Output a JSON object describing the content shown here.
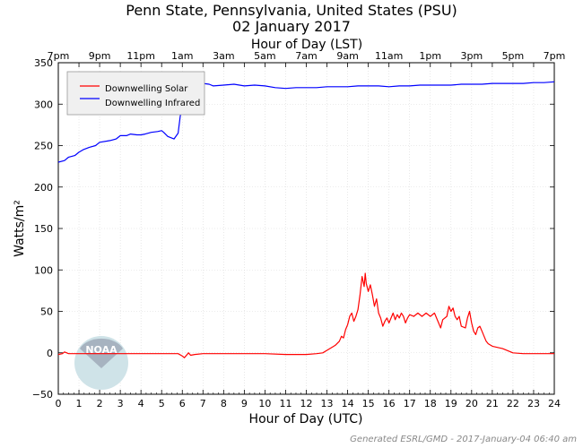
{
  "chart_data": {
    "type": "line",
    "title": "Penn State, Pennsylvania, United States (PSU)",
    "subtitle": "02 January 2017",
    "xlabel": "Hour of Day (UTC)",
    "top_xlabel": "Hour of Day (LST)",
    "ylabel": "Watts/m²",
    "xlim": [
      0,
      24
    ],
    "ylim": [
      -50,
      350
    ],
    "x_ticks": [
      0,
      1,
      2,
      3,
      4,
      5,
      6,
      7,
      8,
      9,
      10,
      11,
      12,
      13,
      14,
      15,
      16,
      17,
      18,
      19,
      20,
      21,
      22,
      23,
      24
    ],
    "y_ticks": [
      -50,
      0,
      50,
      100,
      150,
      200,
      250,
      300,
      350
    ],
    "top_ticks": [
      {
        "x": 0,
        "label": "7pm"
      },
      {
        "x": 2,
        "label": "9pm"
      },
      {
        "x": 4,
        "label": "11pm"
      },
      {
        "x": 6,
        "label": "1am"
      },
      {
        "x": 8,
        "label": "3am"
      },
      {
        "x": 10,
        "label": "5am"
      },
      {
        "x": 12,
        "label": "7am"
      },
      {
        "x": 14,
        "label": "9am"
      },
      {
        "x": 16,
        "label": "11am"
      },
      {
        "x": 18,
        "label": "1pm"
      },
      {
        "x": 20,
        "label": "3pm"
      },
      {
        "x": 22,
        "label": "5pm"
      },
      {
        "x": 24,
        "label": "7pm"
      }
    ],
    "grid": true,
    "legend_position": "top-left",
    "series": [
      {
        "name": "Downwelling Solar",
        "color": "#ff0000",
        "points": [
          [
            0,
            -2
          ],
          [
            0.2,
            -1
          ],
          [
            0.3,
            1
          ],
          [
            0.5,
            -1
          ],
          [
            1,
            -1
          ],
          [
            1.5,
            -1
          ],
          [
            2,
            -1
          ],
          [
            2.5,
            -1
          ],
          [
            3,
            -1
          ],
          [
            3.5,
            -1
          ],
          [
            4,
            -1
          ],
          [
            4.5,
            -1
          ],
          [
            5,
            -1
          ],
          [
            5.5,
            -1
          ],
          [
            5.8,
            -1
          ],
          [
            6,
            -4
          ],
          [
            6.1,
            -6
          ],
          [
            6.2,
            -3
          ],
          [
            6.3,
            0
          ],
          [
            6.4,
            -3
          ],
          [
            6.6,
            -2
          ],
          [
            7,
            -1
          ],
          [
            8,
            -1
          ],
          [
            9,
            -1
          ],
          [
            10,
            -1
          ],
          [
            11,
            -2
          ],
          [
            12,
            -2
          ],
          [
            12.5,
            -1
          ],
          [
            12.8,
            0
          ],
          [
            13,
            3
          ],
          [
            13.2,
            6
          ],
          [
            13.4,
            9
          ],
          [
            13.6,
            14
          ],
          [
            13.7,
            20
          ],
          [
            13.8,
            18
          ],
          [
            13.9,
            28
          ],
          [
            14,
            34
          ],
          [
            14.1,
            44
          ],
          [
            14.2,
            48
          ],
          [
            14.3,
            38
          ],
          [
            14.4,
            44
          ],
          [
            14.5,
            52
          ],
          [
            14.6,
            70
          ],
          [
            14.7,
            92
          ],
          [
            14.8,
            80
          ],
          [
            14.85,
            96
          ],
          [
            14.9,
            84
          ],
          [
            15,
            74
          ],
          [
            15.1,
            82
          ],
          [
            15.2,
            70
          ],
          [
            15.3,
            56
          ],
          [
            15.4,
            65
          ],
          [
            15.5,
            48
          ],
          [
            15.6,
            42
          ],
          [
            15.7,
            32
          ],
          [
            15.8,
            38
          ],
          [
            15.9,
            42
          ],
          [
            16,
            36
          ],
          [
            16.1,
            42
          ],
          [
            16.2,
            48
          ],
          [
            16.3,
            40
          ],
          [
            16.4,
            46
          ],
          [
            16.5,
            42
          ],
          [
            16.6,
            48
          ],
          [
            16.7,
            44
          ],
          [
            16.8,
            36
          ],
          [
            16.9,
            42
          ],
          [
            17,
            46
          ],
          [
            17.2,
            44
          ],
          [
            17.4,
            48
          ],
          [
            17.6,
            44
          ],
          [
            17.8,
            48
          ],
          [
            18,
            44
          ],
          [
            18.2,
            48
          ],
          [
            18.4,
            36
          ],
          [
            18.5,
            30
          ],
          [
            18.6,
            40
          ],
          [
            18.8,
            44
          ],
          [
            18.9,
            56
          ],
          [
            19,
            50
          ],
          [
            19.1,
            54
          ],
          [
            19.2,
            44
          ],
          [
            19.3,
            40
          ],
          [
            19.4,
            44
          ],
          [
            19.5,
            32
          ],
          [
            19.7,
            30
          ],
          [
            19.8,
            42
          ],
          [
            19.9,
            50
          ],
          [
            20,
            36
          ],
          [
            20.1,
            26
          ],
          [
            20.2,
            22
          ],
          [
            20.3,
            30
          ],
          [
            20.4,
            32
          ],
          [
            20.5,
            26
          ],
          [
            20.6,
            20
          ],
          [
            20.7,
            14
          ],
          [
            20.8,
            11
          ],
          [
            21,
            8
          ],
          [
            21.5,
            5
          ],
          [
            22,
            0
          ],
          [
            22.5,
            -1
          ],
          [
            23,
            -1
          ],
          [
            24,
            -1
          ]
        ]
      },
      {
        "name": "Downwelling Infrared",
        "color": "#0000ff",
        "points": [
          [
            0,
            230
          ],
          [
            0.3,
            232
          ],
          [
            0.5,
            236
          ],
          [
            0.8,
            238
          ],
          [
            1,
            242
          ],
          [
            1.2,
            245
          ],
          [
            1.5,
            248
          ],
          [
            1.8,
            250
          ],
          [
            2,
            254
          ],
          [
            2.5,
            256
          ],
          [
            2.8,
            258
          ],
          [
            3,
            262
          ],
          [
            3.3,
            262
          ],
          [
            3.5,
            264
          ],
          [
            3.8,
            263
          ],
          [
            4,
            263
          ],
          [
            4.2,
            264
          ],
          [
            4.5,
            266
          ],
          [
            4.8,
            267
          ],
          [
            5,
            268
          ],
          [
            5.1,
            266
          ],
          [
            5.3,
            261
          ],
          [
            5.6,
            258
          ],
          [
            5.8,
            265
          ],
          [
            5.9,
            285
          ],
          [
            6,
            300
          ],
          [
            6.1,
            302
          ],
          [
            6.2,
            296
          ],
          [
            6.3,
            288
          ],
          [
            6.4,
            308
          ],
          [
            6.6,
            320
          ],
          [
            6.8,
            324
          ],
          [
            7,
            325
          ],
          [
            7.3,
            324
          ],
          [
            7.5,
            322
          ],
          [
            8,
            323
          ],
          [
            8.5,
            324
          ],
          [
            9,
            322
          ],
          [
            9.5,
            323
          ],
          [
            10,
            322
          ],
          [
            10.5,
            320
          ],
          [
            11,
            319
          ],
          [
            11.5,
            320
          ],
          [
            12,
            320
          ],
          [
            12.5,
            320
          ],
          [
            13,
            321
          ],
          [
            13.5,
            321
          ],
          [
            14,
            321
          ],
          [
            14.5,
            322
          ],
          [
            15,
            322
          ],
          [
            15.5,
            322
          ],
          [
            16,
            321
          ],
          [
            16.5,
            322
          ],
          [
            17,
            322
          ],
          [
            17.5,
            323
          ],
          [
            18,
            323
          ],
          [
            18.5,
            323
          ],
          [
            19,
            323
          ],
          [
            19.5,
            324
          ],
          [
            20,
            324
          ],
          [
            20.5,
            324
          ],
          [
            21,
            325
          ],
          [
            21.5,
            325
          ],
          [
            22,
            325
          ],
          [
            22.5,
            325
          ],
          [
            23,
            326
          ],
          [
            23.5,
            326
          ],
          [
            24,
            327
          ]
        ]
      }
    ]
  },
  "logo": {
    "text": "NOAA"
  },
  "footer": "Generated ESRL/GMD - 2017-January-04 06:40 am"
}
